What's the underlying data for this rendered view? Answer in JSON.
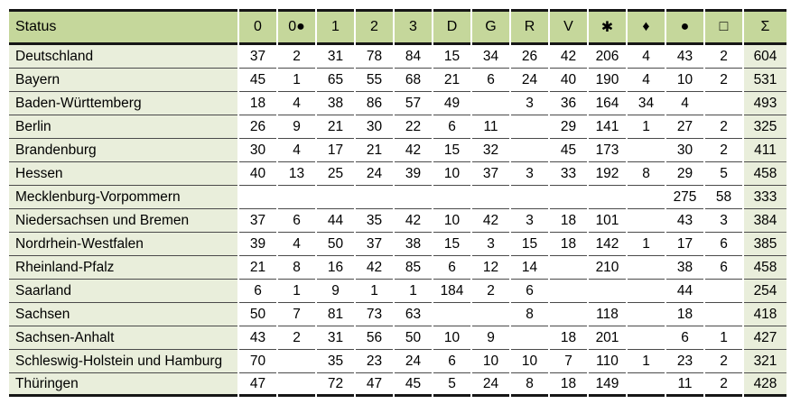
{
  "colors": {
    "page_bg": "#ffffff",
    "header_bg": "#c5d79b",
    "label_bg": "#e9eedb",
    "sum_bg": "#e9eedb",
    "border_heavy": "#161616",
    "row_line": "#4a4a4a",
    "text": "#000000"
  },
  "chart_data": {
    "type": "table",
    "title": "",
    "columns": [
      {
        "key": "status",
        "label": "Status"
      },
      {
        "key": "zero",
        "label": "0"
      },
      {
        "key": "zero-dot",
        "label": "0●"
      },
      {
        "key": "one",
        "label": "1"
      },
      {
        "key": "two",
        "label": "2"
      },
      {
        "key": "three",
        "label": "3"
      },
      {
        "key": "d",
        "label": "D"
      },
      {
        "key": "g",
        "label": "G"
      },
      {
        "key": "r",
        "label": "R"
      },
      {
        "key": "v",
        "label": "V"
      },
      {
        "key": "asterisk",
        "label": "✱"
      },
      {
        "key": "diamond",
        "label": "♦"
      },
      {
        "key": "circle",
        "label": "●"
      },
      {
        "key": "square",
        "label": "□"
      },
      {
        "key": "sigma",
        "label": "Σ"
      }
    ],
    "rows": [
      {
        "status": "Deutschland",
        "values": [
          "37",
          "2",
          "31",
          "78",
          "84",
          "15",
          "34",
          "26",
          "42",
          "206",
          "4",
          "43",
          "2",
          "604"
        ]
      },
      {
        "status": "Bayern",
        "values": [
          "45",
          "1",
          "65",
          "55",
          "68",
          "21",
          "6",
          "24",
          "40",
          "190",
          "4",
          "10",
          "2",
          "531"
        ]
      },
      {
        "status": "Baden-Württemberg",
        "values": [
          "18",
          "4",
          "38",
          "86",
          "57",
          "49",
          "",
          "3",
          "36",
          "164",
          "34",
          "4",
          "",
          "493"
        ]
      },
      {
        "status": "Berlin",
        "values": [
          "26",
          "9",
          "21",
          "30",
          "22",
          "6",
          "11",
          "",
          "29",
          "141",
          "1",
          "27",
          "2",
          "325"
        ]
      },
      {
        "status": "Brandenburg",
        "values": [
          "30",
          "4",
          "17",
          "21",
          "42",
          "15",
          "32",
          "",
          "45",
          "173",
          "",
          "30",
          "2",
          "411"
        ]
      },
      {
        "status": "Hessen",
        "values": [
          "40",
          "13",
          "25",
          "24",
          "39",
          "10",
          "37",
          "3",
          "33",
          "192",
          "8",
          "29",
          "5",
          "458"
        ]
      },
      {
        "status": "Mecklenburg-Vorpommern",
        "values": [
          "",
          "",
          "",
          "",
          "",
          "",
          "",
          "",
          "",
          "",
          "",
          "275",
          "58",
          "333"
        ]
      },
      {
        "status": "Niedersachsen und Bremen",
        "values": [
          "37",
          "6",
          "44",
          "35",
          "42",
          "10",
          "42",
          "3",
          "18",
          "101",
          "",
          "43",
          "3",
          "384"
        ]
      },
      {
        "status": "Nordrhein-Westfalen",
        "values": [
          "39",
          "4",
          "50",
          "37",
          "38",
          "15",
          "3",
          "15",
          "18",
          "142",
          "1",
          "17",
          "6",
          "385"
        ]
      },
      {
        "status": "Rheinland-Pfalz",
        "values": [
          "21",
          "8",
          "16",
          "42",
          "85",
          "6",
          "12",
          "14",
          "",
          "210",
          "",
          "38",
          "6",
          "458"
        ]
      },
      {
        "status": "Saarland",
        "values": [
          "6",
          "1",
          "9",
          "1",
          "1",
          "184",
          "2",
          "6",
          "",
          "",
          "",
          "44",
          "",
          "254"
        ]
      },
      {
        "status": "Sachsen",
        "values": [
          "50",
          "7",
          "81",
          "73",
          "63",
          "",
          "",
          "8",
          "",
          "118",
          "",
          "18",
          "",
          "418"
        ]
      },
      {
        "status": "Sachsen-Anhalt",
        "values": [
          "43",
          "2",
          "31",
          "56",
          "50",
          "10",
          "9",
          "",
          "18",
          "201",
          "",
          "6",
          "1",
          "427"
        ]
      },
      {
        "status": "Schleswig-Holstein und Hamburg",
        "values": [
          "70",
          "",
          "35",
          "23",
          "24",
          "6",
          "10",
          "10",
          "7",
          "110",
          "1",
          "23",
          "2",
          "321"
        ]
      },
      {
        "status": "Thüringen",
        "values": [
          "47",
          "",
          "72",
          "47",
          "45",
          "5",
          "24",
          "8",
          "18",
          "149",
          "",
          "11",
          "2",
          "428"
        ]
      }
    ]
  }
}
